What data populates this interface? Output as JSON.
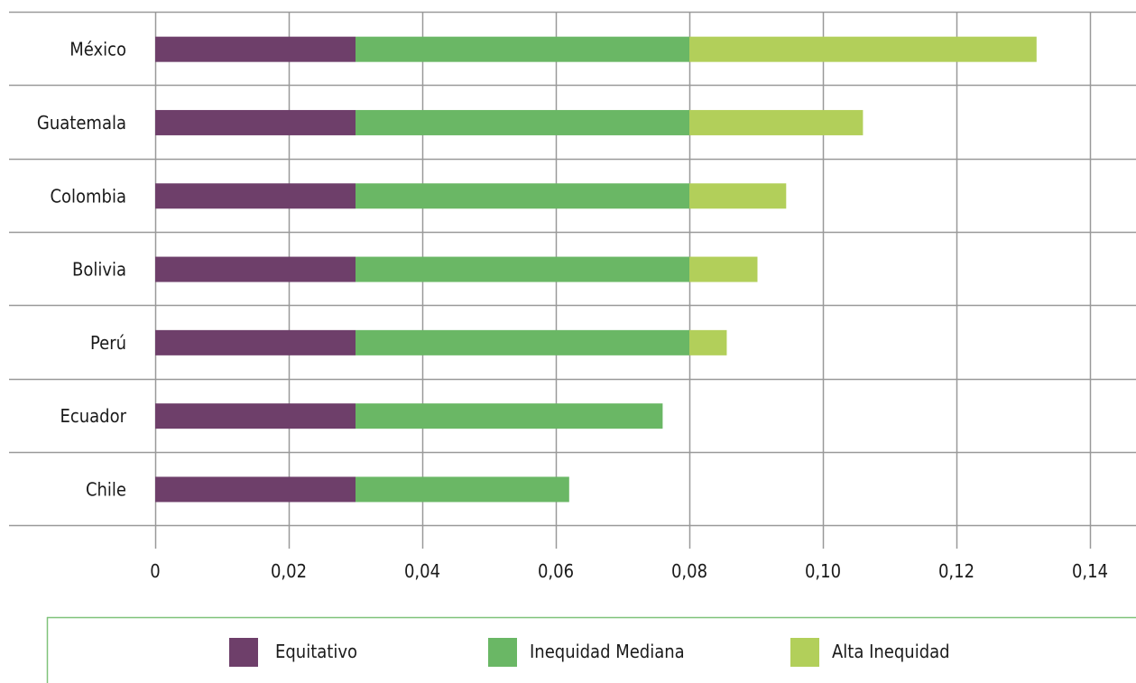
{
  "chart_data": {
    "type": "bar",
    "orientation": "horizontal",
    "stacked": true,
    "categories": [
      "México",
      "Guatemala",
      "Colombia",
      "Bolivia",
      "Perú",
      "Ecuador",
      "Chile"
    ],
    "series": [
      {
        "name": "Equitativo",
        "color": "#6e3f6a",
        "values": [
          0.03,
          0.03,
          0.03,
          0.03,
          0.03,
          0.03,
          0.03
        ]
      },
      {
        "name": "Inequidad Mediana",
        "color": "#6ab765",
        "values": [
          0.05,
          0.05,
          0.05,
          0.05,
          0.05,
          0.046,
          0.032
        ]
      },
      {
        "name": "Alta Inequidad",
        "color": "#b2cf5a",
        "values": [
          0.052,
          0.026,
          0.0145,
          0.0102,
          0.0056,
          0,
          0
        ]
      }
    ],
    "xlim": [
      0,
      0.14
    ],
    "xticks": [
      0,
      0.02,
      0.04,
      0.06,
      0.08,
      0.1,
      0.12,
      0.14
    ],
    "xtick_labels": [
      "0",
      "0,02",
      "0,04",
      "0,06",
      "0,08",
      "0,10",
      "0,12",
      "0,14"
    ],
    "grid": true,
    "legend_position": "bottom",
    "grid_color": "#999999",
    "legend_border_color": "#7fc27a"
  }
}
